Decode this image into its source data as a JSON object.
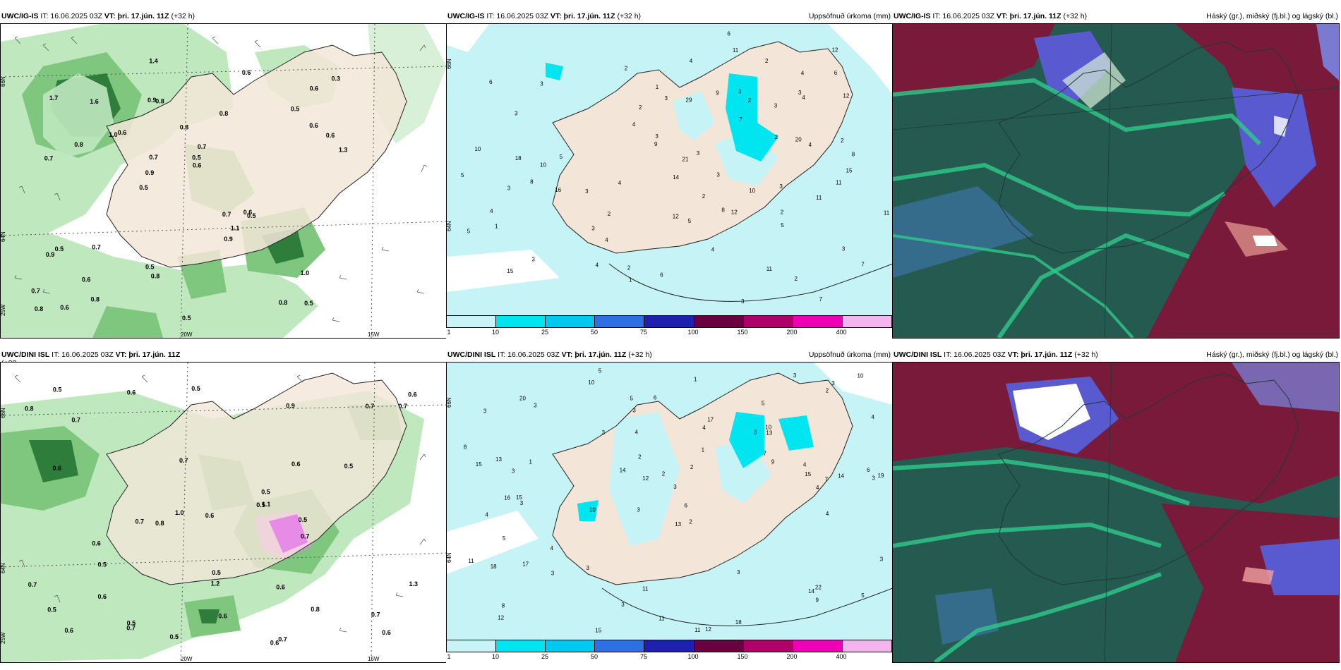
{
  "panels": [
    {
      "model": "UWC/IG-IS",
      "it": "IT: 16.06.2025 03Z",
      "vt_label": "VT:",
      "vt": "þri. 17.jún. 11Z",
      "lead": "(+32 h)",
      "right_title": ""
    },
    {
      "model": "UWC/IG-IS",
      "it": "IT: 16.06.2025 03Z",
      "vt_label": "VT:",
      "vt": "þri. 17.jún. 11Z",
      "lead": "(+32 h)",
      "right_title": "Uppsöfnuð úrkoma (mm)"
    },
    {
      "model": "UWC/IG-IS",
      "it": "IT: 16.06.2025 03Z",
      "vt_label": "VT:",
      "vt": "þri. 17.jún. 11Z",
      "lead": "(+32 h)",
      "right_title": "Háský (gr.), miðský (fj.bl.) og lágský (bl.)"
    },
    {
      "model": "UWC/DINI ISL",
      "it": "IT: 16.06.2025 03Z",
      "vt_label": "VT:",
      "vt": "þri. 17.jún. 11Z",
      "lead": "(+32",
      "lead2": "h)",
      "right_title": ""
    },
    {
      "model": "UWC/DINI ISL",
      "it": "IT: 16.06.2025 03Z",
      "vt_label": "VT:",
      "vt": "þri. 17.jún. 11Z",
      "lead": "(+32 h)",
      "right_title": "Uppsöfnuð úrkoma (mm)"
    },
    {
      "model": "UWC/DINI ISL",
      "it": "IT: 16.06.2025 03Z",
      "vt_label": "VT:",
      "vt": "þri. 17.jún. 11Z",
      "lead": "(+32 h)",
      "right_title": "Háský (gr.), miðský (fj.bl.) og lágský (bl.)"
    }
  ],
  "axis_labels": {
    "lat66": "66N",
    "lat64": "64N",
    "lon20": "20W",
    "lon15": "15W",
    "lon25": "25W"
  },
  "colorbar": {
    "ticks": [
      "1",
      "10",
      "25",
      "50",
      "75",
      "100",
      "150",
      "200",
      "400"
    ],
    "colors": [
      "#c8f4f8",
      "#00e5f0",
      "#00c8f0",
      "#2f6fe6",
      "#2020b0",
      "#6a0040",
      "#b0006a",
      "#f000b4",
      "#f4b4ee"
    ]
  },
  "colors": {
    "land": "#f3e6d8",
    "sea_precip": "#c6f4f6",
    "precip_light": "#bfe8bf",
    "precip_mid": "#7fc67f",
    "precip_dark": "#2e7d3a",
    "pink": "#e68be6",
    "cloud_dark": "#255a50",
    "cloud_red": "#7a1a3a",
    "cloud_blue": "#5a5ad0",
    "cloud_teal": "#2ec98a"
  },
  "labels_top_left": [
    "0.5",
    "0.7",
    "0.6",
    "0.5",
    "0.8",
    "0.6",
    "0.9",
    "0.8",
    "0.5",
    "0.6",
    "0.7",
    "0.6",
    "0.8",
    "0.7",
    "0.5",
    "1.7",
    "1.4",
    "1.3",
    "0.7",
    "0.6",
    "0.9",
    "0.5",
    "0.7",
    "1.6",
    "0.6",
    "0.7",
    "0.8",
    "1.0",
    "0.6",
    "0.5",
    "1.0",
    "0.8",
    "0.9",
    "0.8",
    "0.6",
    "0.5",
    "0.8",
    "0.8",
    "0.6",
    "0.9",
    "0.5",
    "0.3",
    "1.1"
  ],
  "labels_bot_left": [
    "0.5",
    "0.6",
    "0.5",
    "0.8",
    "0.6",
    "0.7",
    "0.7",
    "0.6",
    "0.5",
    "0.7",
    "0.7",
    "0.6",
    "1.0",
    "1.2",
    "0.9",
    "0.5",
    "0.6",
    "0.7",
    "0.8",
    "0.8",
    "0.6",
    "0.6",
    "0.5",
    "0.6",
    "0.5",
    "0.6",
    "0.7",
    "0.5",
    "0.5",
    "0.7",
    "0.6",
    "0.7",
    "0.5",
    "0.7",
    "0.6",
    "0.5",
    "1.3",
    "0.5",
    "0.6",
    "0.7",
    "1.1"
  ],
  "labels_top_mid": [
    "7",
    "8",
    "8",
    "6",
    "3",
    "3",
    "3",
    "3",
    "3",
    "3",
    "2",
    "2",
    "4",
    "2",
    "3",
    "1",
    "3",
    "21",
    "10",
    "15",
    "12",
    "29",
    "20",
    "11",
    "15",
    "18",
    "16",
    "14",
    "9",
    "6",
    "12",
    "3",
    "3",
    "3",
    "2",
    "11",
    "11",
    "11",
    "4",
    "3",
    "2",
    "5",
    "4",
    "6",
    "4",
    "10",
    "12",
    "11",
    "9",
    "12",
    "10",
    "2",
    "2",
    "4",
    "4",
    "5",
    "1",
    "3",
    "2",
    "2",
    "2",
    "3",
    "3",
    "4",
    "5",
    "4",
    "5",
    "3",
    "2",
    "4",
    "5",
    "6",
    "4",
    "7",
    "7",
    "8",
    "1"
  ],
  "labels_bot_mid": [
    "5",
    "5",
    "3",
    "3",
    "2",
    "15",
    "3",
    "3",
    "4",
    "4",
    "3",
    "12",
    "10",
    "10",
    "11",
    "12",
    "11",
    "3",
    "9",
    "4",
    "3",
    "16",
    "19",
    "14",
    "11",
    "13",
    "12",
    "15",
    "22",
    "18",
    "14",
    "17",
    "17",
    "14",
    "3",
    "3",
    "4",
    "3",
    "10",
    "6",
    "8",
    "15",
    "18",
    "20",
    "11",
    "13",
    "9",
    "10",
    "8",
    "6",
    "3",
    "4",
    "2",
    "2",
    "1",
    "3",
    "2",
    "2",
    "3",
    "4",
    "5",
    "4",
    "3",
    "3",
    "13",
    "15",
    "7",
    "3",
    "3",
    "4",
    "5",
    "5",
    "6",
    "7",
    "1",
    "1"
  ]
}
